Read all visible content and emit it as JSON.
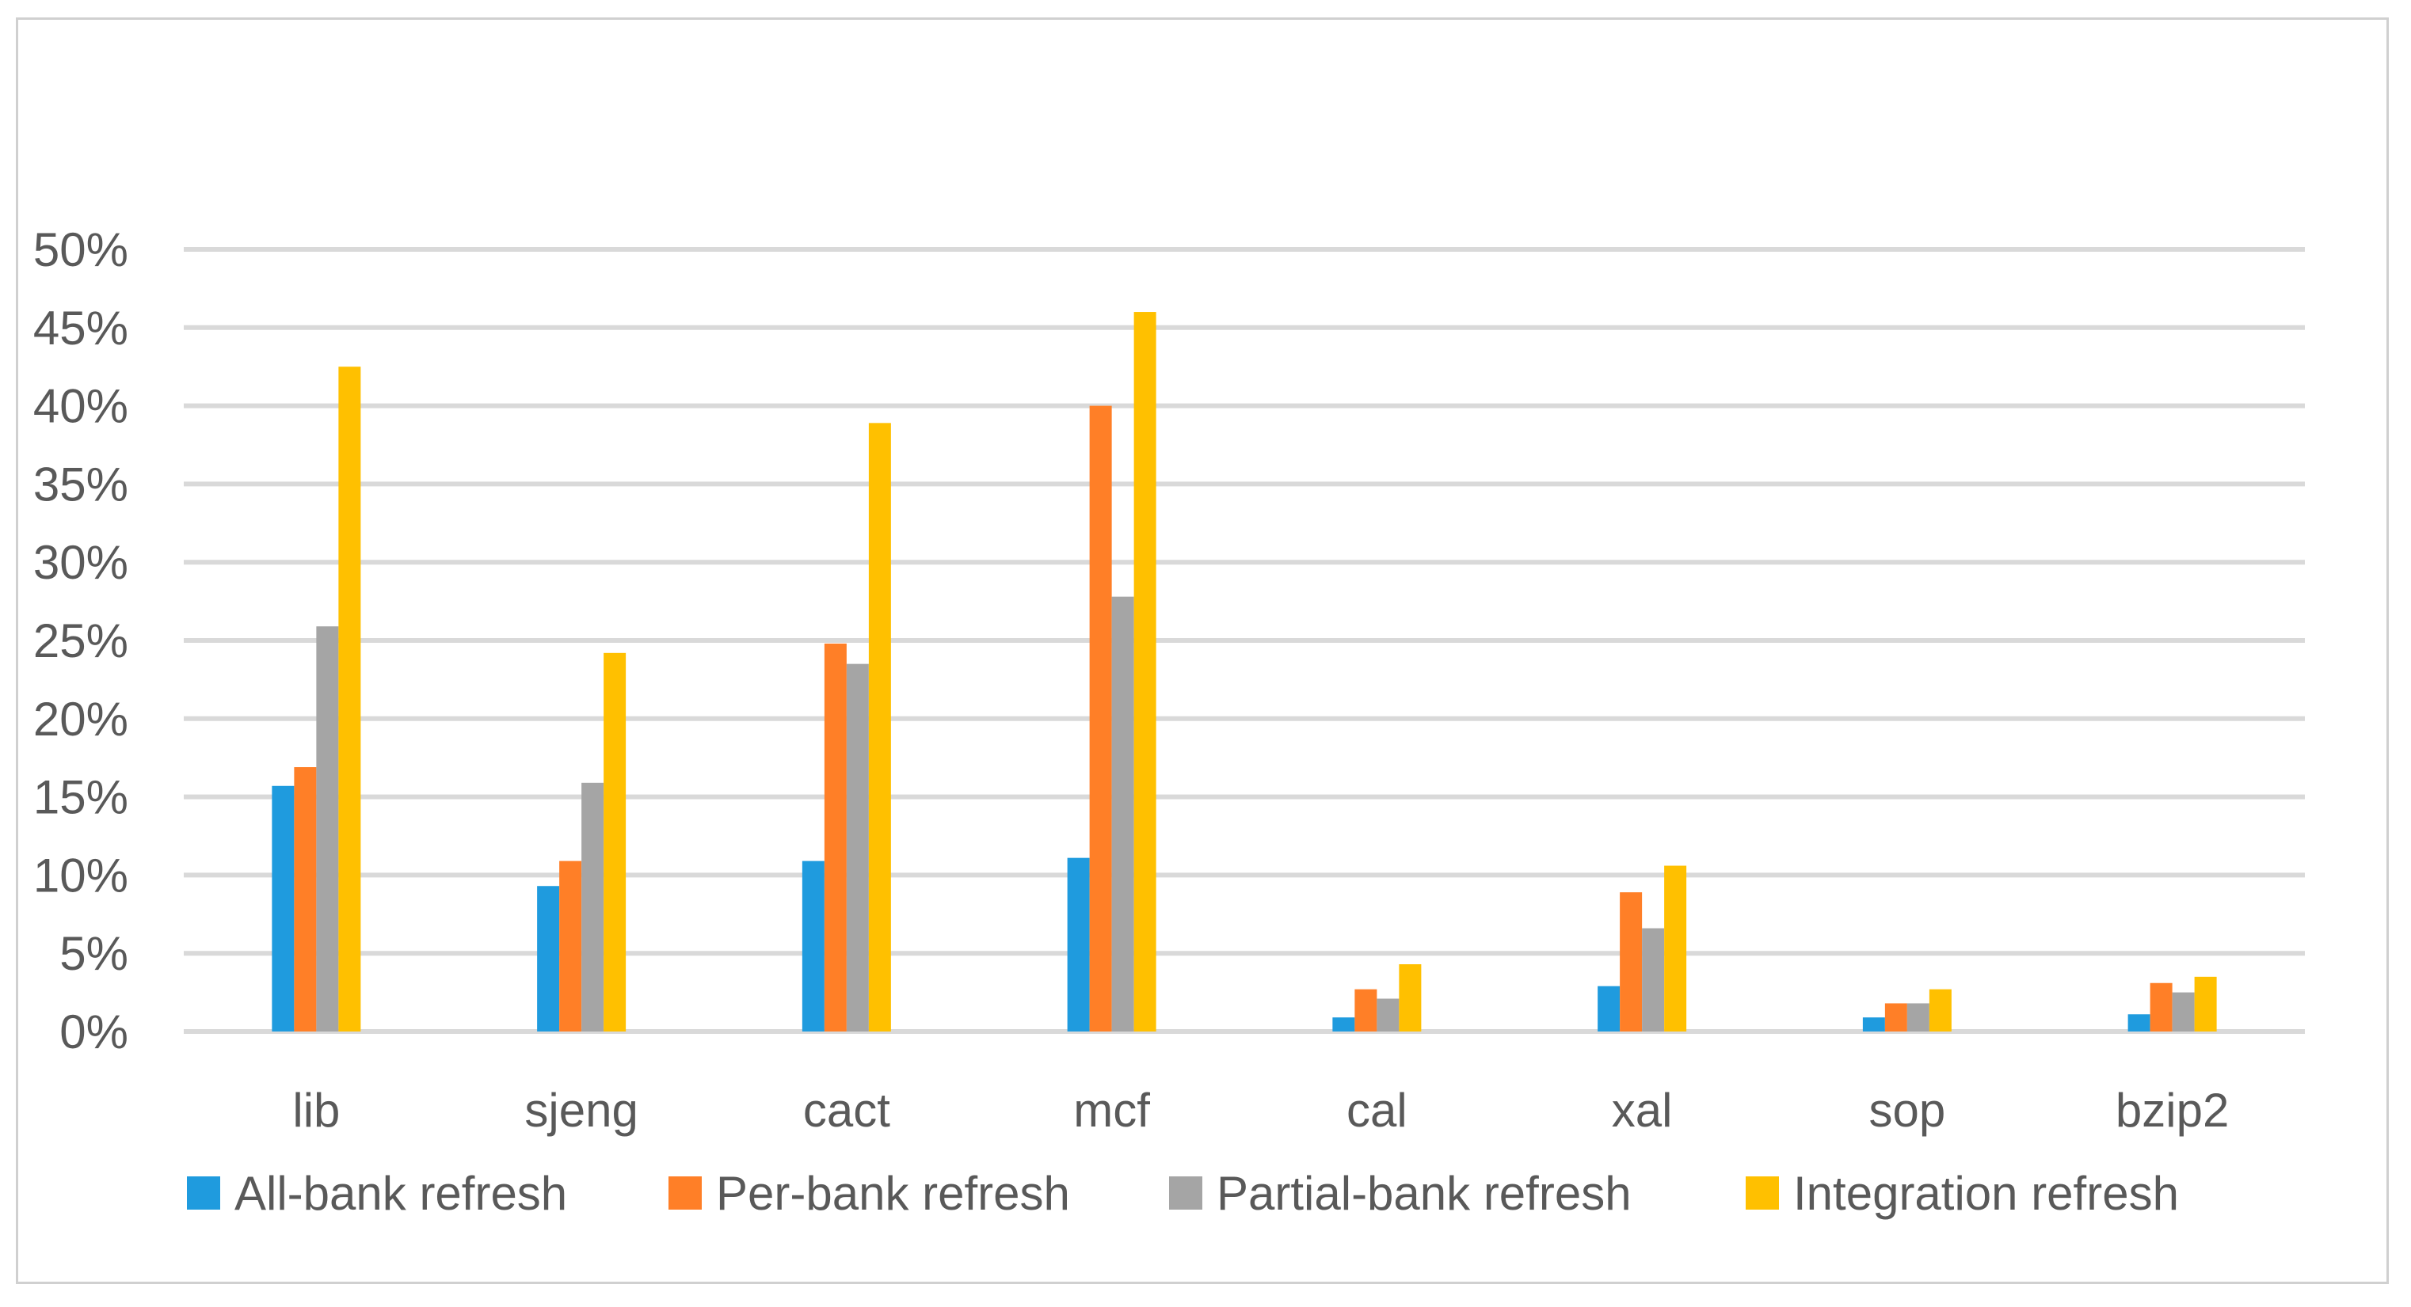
{
  "chart_data": {
    "type": "bar",
    "title": "",
    "xlabel": "",
    "ylabel": "",
    "categories": [
      "lib",
      "sjeng",
      "cact",
      "mcf",
      "cal",
      "xal",
      "sop",
      "bzip2"
    ],
    "series": [
      {
        "name": "All-bank refresh",
        "color": "#1F9BDE",
        "values": [
          0.157,
          0.093,
          0.109,
          0.111,
          0.009,
          0.029,
          0.009,
          0.011
        ]
      },
      {
        "name": "Per-bank refresh",
        "color": "#FF7F27",
        "values": [
          0.169,
          0.109,
          0.248,
          0.4,
          0.027,
          0.089,
          0.018,
          0.031
        ]
      },
      {
        "name": "Partial-bank refresh",
        "color": "#A5A5A5",
        "values": [
          0.259,
          0.159,
          0.235,
          0.278,
          0.021,
          0.066,
          0.018,
          0.025
        ]
      },
      {
        "name": "Integration refresh",
        "color": "#FFC000",
        "values": [
          0.425,
          0.242,
          0.389,
          0.46,
          0.043,
          0.106,
          0.027,
          0.035
        ]
      }
    ],
    "ylim": [
      0,
      0.5
    ],
    "y_ticks": [
      "0%",
      "5%",
      "10%",
      "15%",
      "20%",
      "25%",
      "30%",
      "35%",
      "40%",
      "45%",
      "50%"
    ],
    "y_format": "percent",
    "grid": true,
    "grid_color": "#D9D9D9",
    "legend_position": "bottom"
  }
}
